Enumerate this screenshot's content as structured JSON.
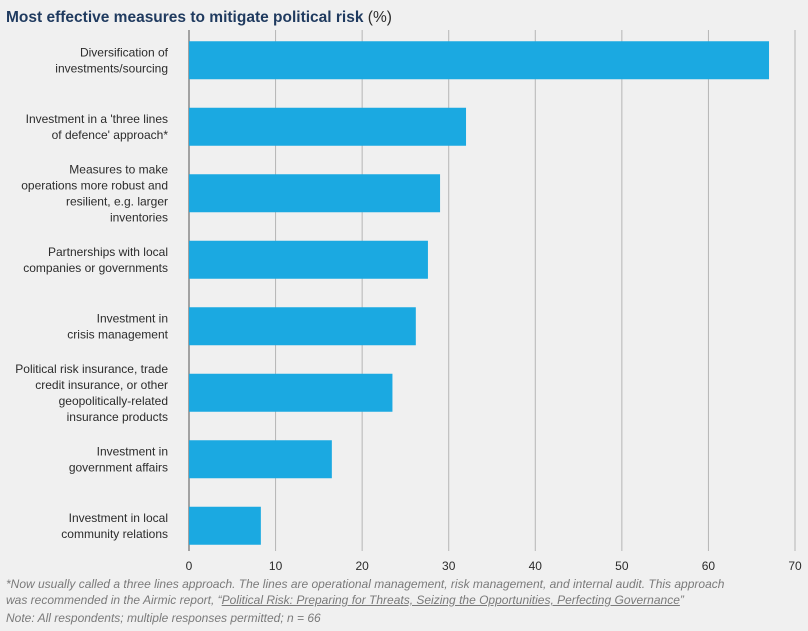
{
  "chart_data": {
    "type": "bar",
    "orientation": "horizontal",
    "title": "Most effective measures to mitigate political risk",
    "title_unit": "(%)",
    "categories": [
      [
        "Diversification of",
        "investments/sourcing"
      ],
      [
        "Investment in a 'three lines",
        "of defence' approach*"
      ],
      [
        "Measures to make",
        "operations more robust and",
        "resilient, e.g. larger",
        "inventories"
      ],
      [
        "Partnerships with local",
        "companies or governments"
      ],
      [
        "Investment in",
        "crisis management"
      ],
      [
        "Political risk insurance, trade",
        "credit insurance, or other",
        "geopolitically-related",
        "insurance products"
      ],
      [
        "Investment in",
        "government affairs"
      ],
      [
        "Investment in local",
        "community relations"
      ]
    ],
    "values": [
      67,
      32,
      29,
      27.6,
      26.2,
      23.5,
      16.5,
      8.3
    ],
    "xlim": [
      0,
      70
    ],
    "xticks": [
      0,
      10,
      20,
      30,
      40,
      50,
      60,
      70
    ],
    "grid": true,
    "bar_color": "#1ba9e1",
    "grid_color": "#b5b5b5",
    "axis_color": "#555555"
  },
  "footer": {
    "note1_line1": "*Now usually called a three lines approach. The lines are operational management, risk management, and internal audit. This approach",
    "note1_line2_prefix": "was recommended in the Airmic report, “",
    "note1_report": "Political Risk: Preparing for Threats, Seizing the Opportunities, Perfecting Governance",
    "note1_line2_suffix": "”",
    "note2": "Note: All respondents; multiple responses permitted; n = 66"
  }
}
